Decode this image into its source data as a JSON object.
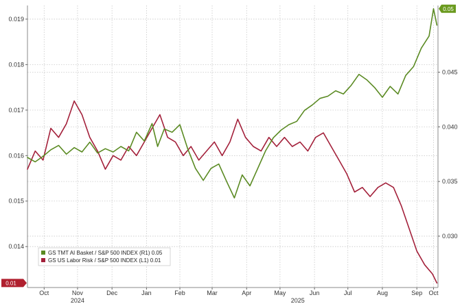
{
  "colors": {
    "green": "#5a8a22",
    "red": "#a3203a",
    "grid": "#c8c8c8",
    "green_tag": "#6a9a1e",
    "red_tag": "#b0202f"
  },
  "chart_data": {
    "type": "line",
    "grid": true,
    "legend_position": "bottom-left",
    "x_range": [
      "2024-10-01",
      "2025-10-05"
    ],
    "x_ticks": [
      {
        "label": "Oct",
        "x": "2024-10-16"
      },
      {
        "label": "Nov",
        "x": "2024-11-15"
      },
      {
        "label": "Dec",
        "x": "2024-12-16"
      },
      {
        "label": "Jan",
        "x": "2025-01-16"
      },
      {
        "label": "Feb",
        "x": "2025-02-15"
      },
      {
        "label": "Mar",
        "x": "2025-03-16"
      },
      {
        "label": "Apr",
        "x": "2025-04-16"
      },
      {
        "label": "May",
        "x": "2025-05-16"
      },
      {
        "label": "Jun",
        "x": "2025-06-16"
      },
      {
        "label": "Jul",
        "x": "2025-07-16"
      },
      {
        "label": "Aug",
        "x": "2025-08-16"
      },
      {
        "label": "Sep",
        "x": "2025-09-16"
      },
      {
        "label": "Oct",
        "x": "2025-10-01"
      }
    ],
    "year_labels": [
      {
        "label": "2024",
        "x": "2024-11-15"
      },
      {
        "label": "2025",
        "x": "2025-06-01"
      }
    ],
    "left_axis": {
      "range": [
        0.0131,
        0.0193
      ],
      "ticks": [
        "0.014",
        "0.015",
        "0.016",
        "0.017",
        "0.018",
        "0.019"
      ]
    },
    "right_axis": {
      "range": [
        0.0253,
        0.0511
      ],
      "ticks": [
        "0.030",
        "0.035",
        "0.040",
        "0.045"
      ]
    },
    "last_value_tags": [
      {
        "series": "green",
        "label": "0.05",
        "axis": "right"
      },
      {
        "series": "red",
        "label": "0.01",
        "axis": "left"
      }
    ],
    "series": [
      {
        "name": "GS TMT AI Basket / S&P 500 INDEX (R1) 0.05",
        "axis": "right",
        "color_key": "green",
        "points": [
          [
            "2024-10-01",
            0.0372
          ],
          [
            "2024-10-08",
            0.0368
          ],
          [
            "2024-10-15",
            0.0373
          ],
          [
            "2024-10-22",
            0.0379
          ],
          [
            "2024-10-29",
            0.0383
          ],
          [
            "2024-11-05",
            0.0375
          ],
          [
            "2024-11-12",
            0.0381
          ],
          [
            "2024-11-19",
            0.0377
          ],
          [
            "2024-11-26",
            0.0386
          ],
          [
            "2024-12-03",
            0.0376
          ],
          [
            "2024-12-10",
            0.038
          ],
          [
            "2024-12-17",
            0.0377
          ],
          [
            "2024-12-24",
            0.0382
          ],
          [
            "2024-12-31",
            0.0378
          ],
          [
            "2025-01-07",
            0.0395
          ],
          [
            "2025-01-14",
            0.0387
          ],
          [
            "2025-01-21",
            0.0403
          ],
          [
            "2025-01-26",
            0.0382
          ],
          [
            "2025-02-01",
            0.0398
          ],
          [
            "2025-02-08",
            0.0395
          ],
          [
            "2025-02-15",
            0.0402
          ],
          [
            "2025-02-22",
            0.038
          ],
          [
            "2025-03-01",
            0.0362
          ],
          [
            "2025-03-08",
            0.0351
          ],
          [
            "2025-03-15",
            0.0362
          ],
          [
            "2025-03-22",
            0.0366
          ],
          [
            "2025-03-29",
            0.035
          ],
          [
            "2025-04-05",
            0.0335
          ],
          [
            "2025-04-12",
            0.0356
          ],
          [
            "2025-04-19",
            0.0346
          ],
          [
            "2025-04-26",
            0.0362
          ],
          [
            "2025-05-03",
            0.0378
          ],
          [
            "2025-05-10",
            0.039
          ],
          [
            "2025-05-17",
            0.0397
          ],
          [
            "2025-05-24",
            0.0402
          ],
          [
            "2025-05-31",
            0.0405
          ],
          [
            "2025-06-07",
            0.0415
          ],
          [
            "2025-06-14",
            0.042
          ],
          [
            "2025-06-21",
            0.0426
          ],
          [
            "2025-06-28",
            0.0428
          ],
          [
            "2025-07-05",
            0.0433
          ],
          [
            "2025-07-12",
            0.043
          ],
          [
            "2025-07-19",
            0.0438
          ],
          [
            "2025-07-26",
            0.0448
          ],
          [
            "2025-08-02",
            0.0443
          ],
          [
            "2025-08-09",
            0.0436
          ],
          [
            "2025-08-16",
            0.0427
          ],
          [
            "2025-08-23",
            0.0437
          ],
          [
            "2025-08-30",
            0.043
          ],
          [
            "2025-09-06",
            0.0447
          ],
          [
            "2025-09-13",
            0.0455
          ],
          [
            "2025-09-20",
            0.0472
          ],
          [
            "2025-09-27",
            0.0483
          ],
          [
            "2025-10-01",
            0.0508
          ],
          [
            "2025-10-04",
            0.0493
          ]
        ]
      },
      {
        "name": "GS US Labor Risk / S&P 500 INDEX (L1) 0.01",
        "axis": "left",
        "color_key": "red",
        "points": [
          [
            "2024-10-01",
            0.0157
          ],
          [
            "2024-10-08",
            0.0161
          ],
          [
            "2024-10-15",
            0.0159
          ],
          [
            "2024-10-22",
            0.0166
          ],
          [
            "2024-10-29",
            0.0164
          ],
          [
            "2024-11-05",
            0.0167
          ],
          [
            "2024-11-12",
            0.0172
          ],
          [
            "2024-11-19",
            0.0169
          ],
          [
            "2024-11-26",
            0.0164
          ],
          [
            "2024-12-03",
            0.0161
          ],
          [
            "2024-12-10",
            0.0157
          ],
          [
            "2024-12-17",
            0.016
          ],
          [
            "2024-12-24",
            0.0159
          ],
          [
            "2024-12-31",
            0.0162
          ],
          [
            "2025-01-07",
            0.016
          ],
          [
            "2025-01-14",
            0.0163
          ],
          [
            "2025-01-21",
            0.0166
          ],
          [
            "2025-01-28",
            0.0169
          ],
          [
            "2025-02-04",
            0.0164
          ],
          [
            "2025-02-11",
            0.0163
          ],
          [
            "2025-02-18",
            0.016
          ],
          [
            "2025-02-25",
            0.0162
          ],
          [
            "2025-03-04",
            0.0159
          ],
          [
            "2025-03-11",
            0.0161
          ],
          [
            "2025-03-18",
            0.0163
          ],
          [
            "2025-03-25",
            0.016
          ],
          [
            "2025-04-01",
            0.0163
          ],
          [
            "2025-04-08",
            0.0168
          ],
          [
            "2025-04-15",
            0.0164
          ],
          [
            "2025-04-22",
            0.0162
          ],
          [
            "2025-04-29",
            0.0161
          ],
          [
            "2025-05-06",
            0.0164
          ],
          [
            "2025-05-13",
            0.0162
          ],
          [
            "2025-05-20",
            0.0164
          ],
          [
            "2025-05-27",
            0.0162
          ],
          [
            "2025-06-03",
            0.0163
          ],
          [
            "2025-06-10",
            0.0161
          ],
          [
            "2025-06-17",
            0.0164
          ],
          [
            "2025-06-24",
            0.0165
          ],
          [
            "2025-07-01",
            0.0162
          ],
          [
            "2025-07-08",
            0.0159
          ],
          [
            "2025-07-15",
            0.0156
          ],
          [
            "2025-07-22",
            0.0152
          ],
          [
            "2025-07-29",
            0.0153
          ],
          [
            "2025-08-05",
            0.0151
          ],
          [
            "2025-08-12",
            0.0153
          ],
          [
            "2025-08-19",
            0.0154
          ],
          [
            "2025-08-26",
            0.0153
          ],
          [
            "2025-09-02",
            0.0149
          ],
          [
            "2025-09-09",
            0.0144
          ],
          [
            "2025-09-16",
            0.0139
          ],
          [
            "2025-09-23",
            0.0136
          ],
          [
            "2025-09-30",
            0.0134
          ],
          [
            "2025-10-04",
            0.0132
          ]
        ]
      }
    ]
  }
}
